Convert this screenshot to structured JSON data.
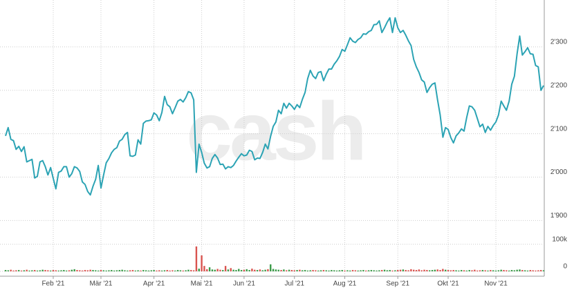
{
  "chart_data": [
    {
      "type": "line",
      "color": "#2ba3b4",
      "watermark": "cash",
      "values": [
        2095,
        2114,
        2087,
        2084,
        2064,
        2071,
        2059,
        2070,
        2035,
        2038,
        2041,
        1998,
        2002,
        2035,
        2038,
        2024,
        2005,
        2022,
        1997,
        1973,
        2011,
        2014,
        2024,
        2024,
        2000,
        2008,
        2024,
        2021,
        2013,
        1989,
        1983,
        1967,
        1959,
        1979,
        1995,
        2027,
        1975,
        2005,
        2033,
        2043,
        2056,
        2064,
        2068,
        2083,
        2087,
        2098,
        2103,
        2049,
        2048,
        2051,
        2086,
        2076,
        2124,
        2129,
        2130,
        2132,
        2148,
        2143,
        2130,
        2149,
        2186,
        2167,
        2162,
        2146,
        2160,
        2175,
        2179,
        2173,
        2183,
        2197,
        2194,
        2178,
        2011,
        2076,
        2057,
        2032,
        2021,
        2024,
        2043,
        2052,
        2044,
        2029,
        2030,
        2019,
        2024,
        2022,
        2027,
        2037,
        2046,
        2054,
        2049,
        2051,
        2062,
        2059,
        2040,
        2044,
        2043,
        2057,
        2076,
        2065,
        2094,
        2117,
        2127,
        2154,
        2146,
        2170,
        2159,
        2170,
        2164,
        2156,
        2167,
        2160,
        2179,
        2195,
        2227,
        2246,
        2233,
        2227,
        2241,
        2243,
        2222,
        2237,
        2249,
        2249,
        2260,
        2268,
        2278,
        2294,
        2290,
        2305,
        2321,
        2313,
        2310,
        2317,
        2321,
        2330,
        2329,
        2335,
        2338,
        2351,
        2352,
        2360,
        2333,
        2344,
        2357,
        2367,
        2333,
        2367,
        2344,
        2333,
        2338,
        2327,
        2314,
        2303,
        2271,
        2254,
        2241,
        2224,
        2219,
        2195,
        2206,
        2214,
        2217,
        2178,
        2143,
        2092,
        2114,
        2110,
        2091,
        2079,
        2095,
        2102,
        2111,
        2106,
        2138,
        2164,
        2162,
        2154,
        2135,
        2116,
        2122,
        2103,
        2117,
        2108,
        2119,
        2127,
        2143,
        2175,
        2164,
        2154,
        2175,
        2214,
        2232,
        2284,
        2325,
        2281,
        2289,
        2298,
        2284,
        2283,
        2257,
        2254,
        2200,
        2211
      ],
      "ylim": [
        1880,
        2400
      ],
      "yticks": [
        {
          "value": 1900,
          "label": "1'900"
        },
        {
          "value": 2000,
          "label": "2'000"
        },
        {
          "value": 2100,
          "label": "2'100"
        },
        {
          "value": 2200,
          "label": "2'200"
        },
        {
          "value": 2300,
          "label": "2'300"
        }
      ],
      "xticks": [
        {
          "value": 18,
          "label": "Feb '21"
        },
        {
          "value": 36,
          "label": "Mär '21"
        },
        {
          "value": 56,
          "label": "Apr '21"
        },
        {
          "value": 74,
          "label": "Mai '21"
        },
        {
          "value": 90,
          "label": "Jun '21"
        },
        {
          "value": 109,
          "label": "Jul '21"
        },
        {
          "value": 128,
          "label": "Aug '21"
        },
        {
          "value": 148,
          "label": "Sep '21"
        },
        {
          "value": 167,
          "label": "Okt '21"
        },
        {
          "value": 185,
          "label": "Nov '21"
        }
      ],
      "grid": true
    },
    {
      "type": "bar",
      "up_color": "#3a9a48",
      "down_color": "#d9534f",
      "values": [
        5000,
        4000,
        6000,
        3000,
        4000,
        5000,
        3000,
        4000,
        6000,
        3000,
        4000,
        5000,
        3000,
        4000,
        6000,
        5000,
        4000,
        3000,
        5000,
        4000,
        3000,
        4000,
        5000,
        3000,
        4000,
        6000,
        8000,
        5000,
        4000,
        3000,
        5000,
        4000,
        6000,
        5000,
        4000,
        3000,
        5000,
        4000,
        3000,
        4000,
        5000,
        3000,
        4000,
        5000,
        6000,
        4000,
        3000,
        4000,
        5000,
        3000,
        4000,
        3000,
        5000,
        4000,
        3000,
        4000,
        5000,
        3000,
        4000,
        3000,
        4000,
        5000,
        3000,
        4000,
        3000,
        5000,
        4000,
        3000,
        4000,
        6000,
        5000,
        4000,
        92000,
        10000,
        59000,
        20000,
        8000,
        15000,
        7000,
        6000,
        9000,
        6000,
        5000,
        20000,
        7000,
        12000,
        6000,
        5000,
        9000,
        5000,
        6000,
        8000,
        5000,
        10000,
        6000,
        5000,
        7000,
        4000,
        6000,
        8000,
        26000,
        9000,
        7000,
        6000,
        5000,
        7000,
        4000,
        6000,
        5000,
        4000,
        5000,
        6000,
        4000,
        5000,
        3000,
        4000,
        5000,
        4000,
        3000,
        4000,
        5000,
        4000,
        3000,
        5000,
        4000,
        3000,
        4000,
        5000,
        3000,
        4000,
        3000,
        5000,
        4000,
        3000,
        4000,
        5000,
        3000,
        4000,
        5000,
        4000,
        3000,
        4000,
        5000,
        6000,
        4000,
        5000,
        3000,
        4000,
        5000,
        6000,
        7000,
        5000,
        4000,
        8000,
        6000,
        5000,
        7000,
        4000,
        6000,
        5000,
        4000,
        5000,
        6000,
        7000,
        5000,
        9000,
        6000,
        5000,
        4000,
        5000,
        4000,
        3000,
        5000,
        4000,
        3000,
        5000,
        4000,
        6000,
        3000,
        4000,
        5000,
        4000,
        3000,
        5000,
        4000,
        3000,
        4000,
        6000,
        5000,
        4000,
        3000,
        5000,
        4000,
        6000,
        7000,
        5000,
        4000,
        3000,
        5000,
        4000,
        3000,
        4000,
        5000,
        4000
      ],
      "ylim": [
        0,
        130000
      ],
      "yticks": [
        0,
        {
          "value": 100000,
          "label": "100k"
        }
      ],
      "grid": true
    }
  ]
}
